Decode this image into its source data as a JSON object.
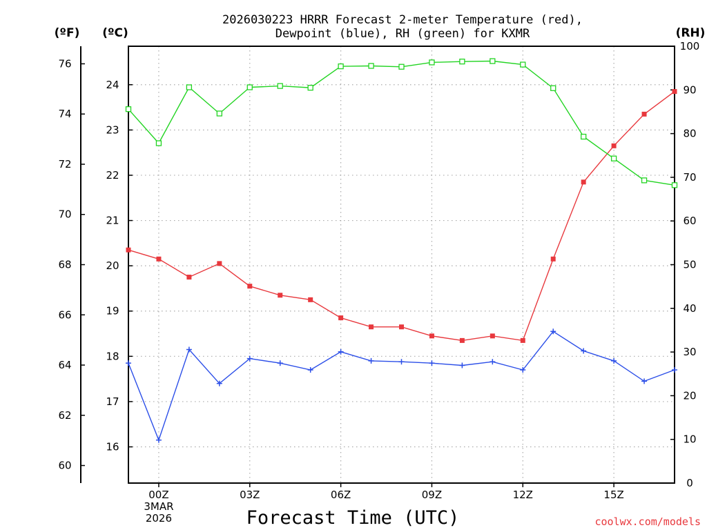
{
  "chart_data": {
    "type": "line",
    "title_lines": [
      "2026030223 HRRR Forecast 2-meter Temperature (red),",
      "Dewpoint (blue), RH (green) for KXMR"
    ],
    "xlabel": "Forecast Time (UTC)",
    "credit": "coolwx.com/models",
    "axes": {
      "fahrenheit": {
        "label": "(ºF)",
        "range": [
          59.3,
          76.7
        ],
        "ticks": [
          60,
          62,
          64,
          66,
          68,
          70,
          72,
          74,
          76
        ]
      },
      "celsius": {
        "label": "(ºC)",
        "range": [
          15.2,
          24.85
        ],
        "ticks": [
          16,
          17,
          18,
          19,
          20,
          21,
          22,
          23,
          24
        ]
      },
      "rh": {
        "label": "(RH)",
        "range": [
          0,
          100
        ],
        "ticks": [
          0,
          10,
          20,
          30,
          40,
          50,
          60,
          70,
          80,
          90,
          100
        ]
      },
      "x": {
        "range": [
          -1,
          17
        ],
        "ticks": [
          {
            "hour": 0,
            "lines": [
              "00Z",
              "3MAR",
              "2026"
            ]
          },
          {
            "hour": 3,
            "lines": [
              "03Z"
            ]
          },
          {
            "hour": 6,
            "lines": [
              "06Z"
            ]
          },
          {
            "hour": 9,
            "lines": [
              "09Z"
            ]
          },
          {
            "hour": 12,
            "lines": [
              "12Z"
            ]
          },
          {
            "hour": 15,
            "lines": [
              "15Z"
            ]
          }
        ]
      }
    },
    "hours": [
      -1,
      0,
      1,
      2,
      3,
      4,
      5,
      6,
      7,
      8,
      9,
      10,
      11,
      12,
      13,
      14,
      15,
      16,
      17
    ],
    "series": [
      {
        "name": "Temperature",
        "units": "C",
        "color": "#e8383d",
        "marker": "filled-square",
        "values": [
          20.35,
          20.15,
          19.75,
          20.05,
          19.55,
          19.35,
          19.25,
          18.85,
          18.65,
          18.65,
          18.45,
          18.35,
          18.45,
          18.35,
          20.15,
          21.85,
          22.65,
          23.35,
          23.85
        ]
      },
      {
        "name": "Dewpoint",
        "units": "C",
        "color": "#2b4ee8",
        "marker": "plus",
        "values": [
          17.85,
          16.15,
          18.15,
          17.4,
          17.95,
          17.85,
          17.7,
          18.1,
          17.9,
          17.88,
          17.85,
          17.8,
          17.88,
          17.7,
          18.55,
          18.12,
          17.9,
          17.45,
          17.7
        ]
      },
      {
        "name": "RH",
        "units": "%",
        "color": "#22d422",
        "marker": "open-square",
        "values": [
          85.6,
          77.8,
          90.6,
          84.6,
          90.6,
          90.9,
          90.5,
          95.4,
          95.5,
          95.3,
          96.3,
          96.5,
          96.6,
          95.8,
          90.4,
          79.3,
          74.3,
          69.3,
          68.2
        ]
      }
    ],
    "grid": true
  }
}
